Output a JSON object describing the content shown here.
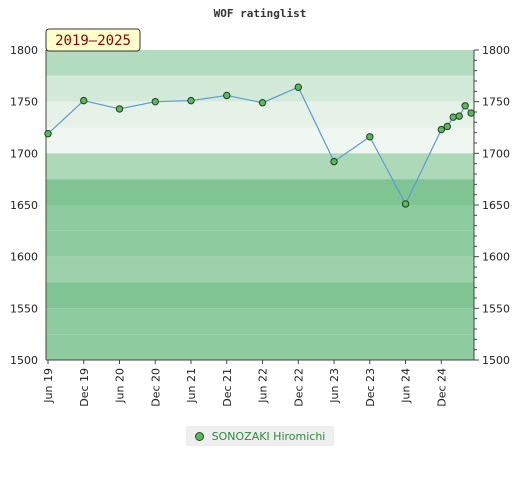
{
  "chart_data": {
    "type": "line",
    "title": "WOF ratinglist",
    "period_label": "2019–2025",
    "ylim": [
      1500,
      1800
    ],
    "y_ticks": [
      1500,
      1550,
      1600,
      1650,
      1700,
      1750,
      1800
    ],
    "x_ticks": [
      "Jun 19",
      "Dec 19",
      "Jun 20",
      "Dec 20",
      "Jun 21",
      "Dec 21",
      "Jun 22",
      "Dec 22",
      "Jun 23",
      "Dec 23",
      "Jun 24",
      "Dec 24"
    ],
    "grid": true,
    "legend_position": "bottom-center",
    "series": [
      {
        "name": "SONOZAKI Hiromichi",
        "color": "#5cb85c",
        "line_color": "#5b9bd5",
        "points": [
          {
            "x": "2019-06",
            "y": 1719
          },
          {
            "x": "2019-12",
            "y": 1751
          },
          {
            "x": "2020-06",
            "y": 1743
          },
          {
            "x": "2020-12",
            "y": 1750
          },
          {
            "x": "2021-06",
            "y": 1751
          },
          {
            "x": "2021-12",
            "y": 1756
          },
          {
            "x": "2022-06",
            "y": 1749
          },
          {
            "x": "2022-12",
            "y": 1764
          },
          {
            "x": "2023-06",
            "y": 1692
          },
          {
            "x": "2023-12",
            "y": 1716
          },
          {
            "x": "2024-06",
            "y": 1651
          },
          {
            "x": "2024-12",
            "y": 1723
          },
          {
            "x": "2025-01",
            "y": 1726
          },
          {
            "x": "2025-02",
            "y": 1735
          },
          {
            "x": "2025-03",
            "y": 1736
          },
          {
            "x": "2025-04",
            "y": 1746
          },
          {
            "x": "2025-05",
            "y": 1739
          }
        ]
      }
    ]
  }
}
